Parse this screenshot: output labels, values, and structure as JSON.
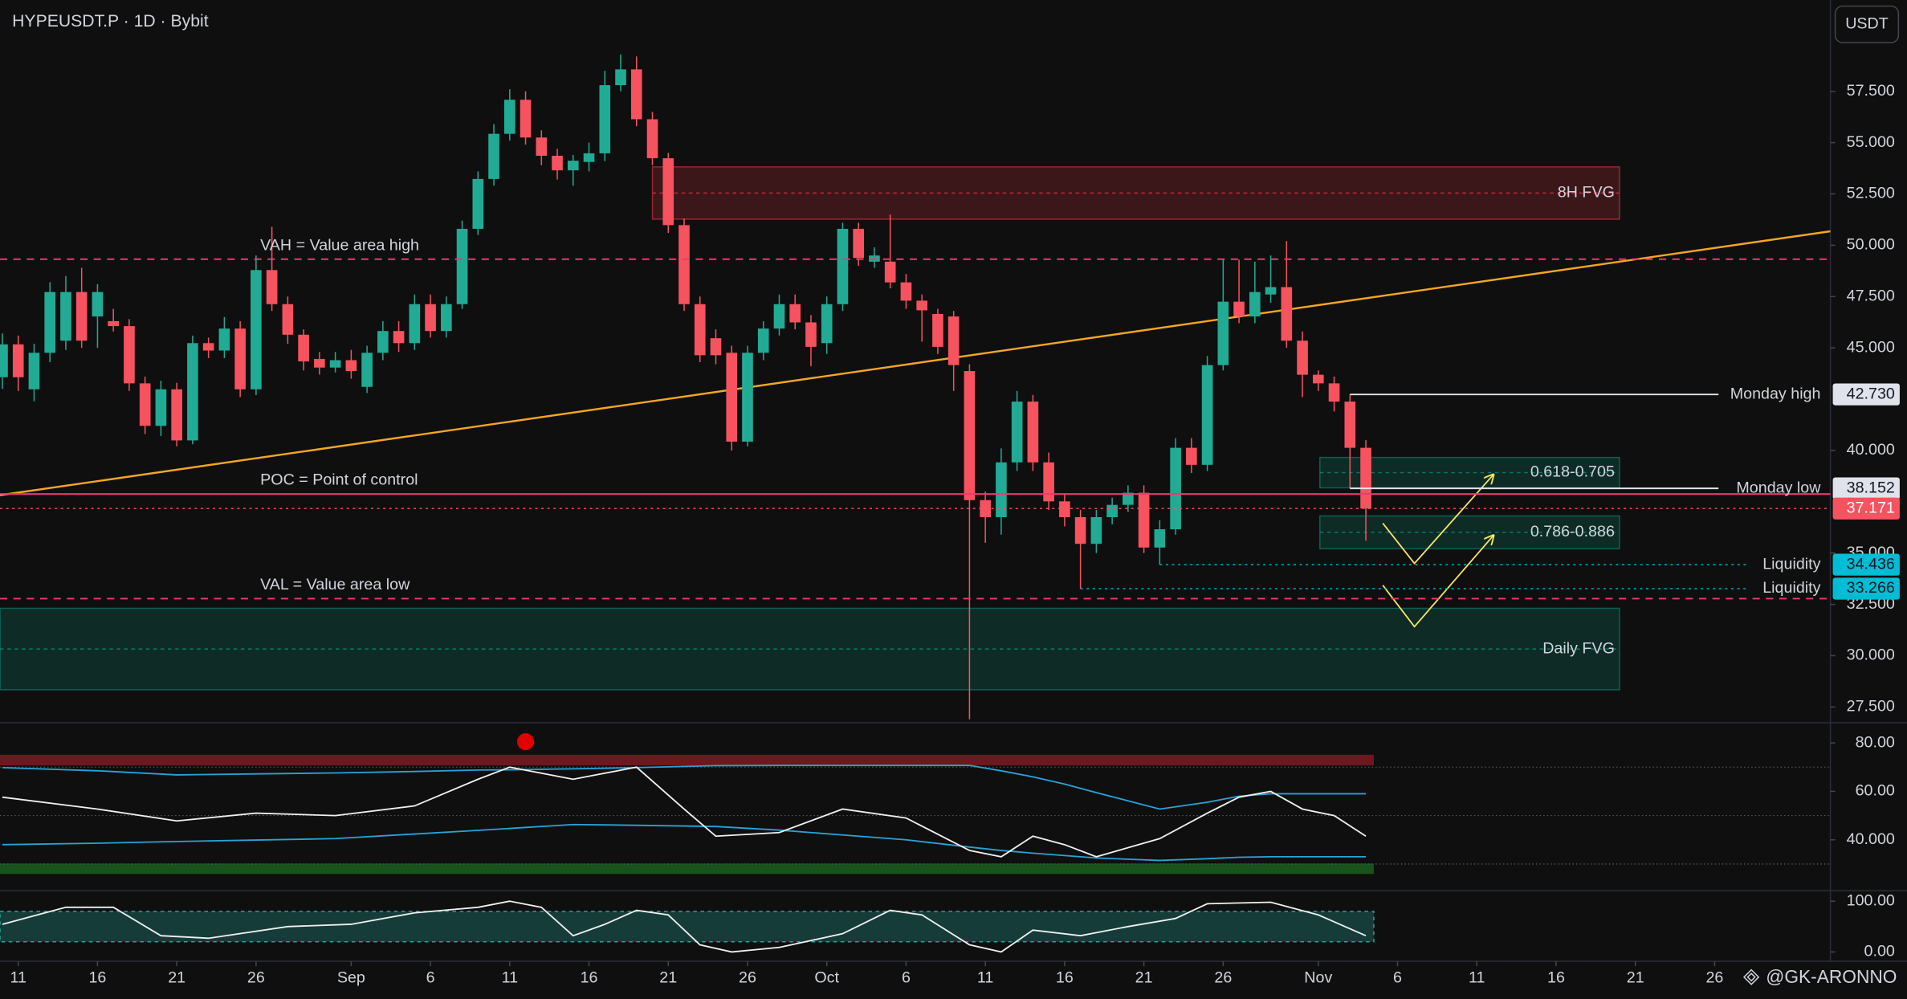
{
  "chart_data": {
    "type": "candlestick",
    "title": "HYPEUSDT.P · 1D · Bybit",
    "currency": "USDT",
    "watermark": "@GK-ARONNO",
    "up_color": "#22ab94",
    "down_color": "#f7525f",
    "xlim": [
      -1.15,
      114.3
    ],
    "ylim": [
      26.79,
      61.95
    ],
    "xticks": [
      {
        "value": 0,
        "label": "11"
      },
      {
        "value": 5,
        "label": "16"
      },
      {
        "value": 10,
        "label": "21"
      },
      {
        "value": 15,
        "label": "26"
      },
      {
        "value": 21,
        "label": "Sep"
      },
      {
        "value": 26,
        "label": "6"
      },
      {
        "value": 31,
        "label": "11"
      },
      {
        "value": 36,
        "label": "16"
      },
      {
        "value": 41,
        "label": "21"
      },
      {
        "value": 46,
        "label": "26"
      },
      {
        "value": 51,
        "label": "Oct"
      },
      {
        "value": 56,
        "label": "6"
      },
      {
        "value": 61,
        "label": "11"
      },
      {
        "value": 66,
        "label": "16"
      },
      {
        "value": 71,
        "label": "21"
      },
      {
        "value": 76,
        "label": "26"
      },
      {
        "value": 82,
        "label": "Nov"
      },
      {
        "value": 87,
        "label": "6"
      },
      {
        "value": 92,
        "label": "11"
      },
      {
        "value": 97,
        "label": "16"
      },
      {
        "value": 102,
        "label": "21"
      },
      {
        "value": 107,
        "label": "26"
      }
    ],
    "yticks": [
      {
        "value": 27.5,
        "label": "27.500"
      },
      {
        "value": 30,
        "label": "30.000"
      },
      {
        "value": 32.5,
        "label": "32.500"
      },
      {
        "value": 35,
        "label": "35.000"
      },
      {
        "value": 40,
        "label": "40.000"
      },
      {
        "value": 45,
        "label": "45.000"
      },
      {
        "value": 47.5,
        "label": "47.500"
      },
      {
        "value": 50,
        "label": "50.000"
      },
      {
        "value": 52.5,
        "label": "52.500"
      },
      {
        "value": 55,
        "label": "55.000"
      },
      {
        "value": 57.5,
        "label": "57.500"
      }
    ],
    "x": [
      -1,
      0,
      1,
      2,
      3,
      4,
      5,
      6,
      7,
      8,
      9,
      10,
      11,
      12,
      13,
      14,
      15,
      16,
      17,
      18,
      19,
      20,
      21,
      22,
      23,
      24,
      25,
      26,
      27,
      28,
      29,
      30,
      31,
      32,
      33,
      34,
      35,
      36,
      37,
      38,
      39,
      40,
      41,
      42,
      43,
      44,
      45,
      46,
      47,
      48,
      49,
      50,
      51,
      52,
      53,
      54,
      55,
      56,
      57,
      58,
      59,
      60,
      61,
      62,
      63,
      64,
      65,
      66,
      67,
      68,
      69,
      70,
      71,
      72,
      73,
      74,
      75,
      76,
      77,
      78,
      79,
      80,
      81,
      82,
      83,
      84,
      85
    ],
    "open": [
      43.57,
      45.17,
      42.98,
      44.76,
      45.35,
      47.72,
      46.53,
      46.3,
      46.06,
      43.27,
      41.2,
      42.98,
      40.49,
      45.23,
      44.87,
      45.94,
      42.98,
      48.79,
      47.13,
      45.64,
      44.46,
      44.04,
      44.4,
      43.1,
      44.76,
      45.82,
      45.23,
      47.13,
      45.82,
      47.13,
      50.8,
      53.23,
      55.43,
      57.09,
      55.25,
      54.36,
      53.65,
      54.06,
      54.48,
      57.8,
      58.57,
      56.14,
      54.24,
      50.98,
      47.13,
      45.47,
      44.76,
      40.43,
      44.76,
      45.94,
      47.13,
      46.24,
      45.23,
      47.13,
      50.8,
      49.2,
      49.2,
      48.19,
      47.3,
      46.65,
      46.53,
      43.87,
      37.58,
      36.75,
      39.42,
      42.38,
      39.42,
      37.52,
      36.75,
      35.45,
      36.75,
      37.35,
      37.94,
      35.27,
      36.16,
      40.13,
      39.3,
      44.16,
      47.25,
      46.53,
      47.6,
      47.96,
      45.35,
      43.69,
      43.27,
      42.38,
      40.13
    ],
    "high": [
      45.7,
      45.6,
      45.2,
      48.2,
      48.5,
      48.9,
      48.1,
      46.9,
      46.4,
      43.6,
      43.4,
      43.3,
      45.6,
      45.5,
      46.5,
      46.3,
      49.5,
      50.9,
      47.5,
      45.9,
      44.8,
      44.8,
      44.9,
      45.1,
      46.3,
      46.3,
      47.6,
      47.6,
      47.5,
      51.2,
      53.6,
      55.9,
      57.6,
      57.5,
      55.6,
      54.7,
      54.4,
      55.0,
      58.5,
      59.3,
      59.2,
      56.5,
      54.5,
      51.3,
      47.5,
      45.9,
      45.1,
      45.1,
      46.3,
      47.6,
      47.6,
      46.6,
      47.5,
      51.1,
      51.1,
      49.9,
      51.5,
      48.6,
      47.6,
      46.9,
      46.8,
      44.2,
      38.0,
      40.1,
      42.9,
      42.7,
      39.9,
      37.9,
      37.1,
      37.1,
      37.7,
      38.3,
      38.3,
      36.6,
      40.6,
      40.6,
      44.6,
      49.3,
      49.3,
      49.2,
      49.5,
      50.2,
      45.8,
      43.9,
      43.6,
      42.73,
      40.5
    ],
    "low": [
      43.0,
      42.9,
      42.4,
      44.3,
      44.9,
      45.0,
      45.0,
      45.8,
      42.9,
      40.8,
      40.7,
      40.2,
      40.3,
      44.5,
      44.5,
      42.6,
      42.7,
      46.8,
      45.2,
      43.9,
      43.7,
      43.8,
      43.5,
      42.8,
      44.4,
      44.8,
      44.9,
      45.5,
      45.5,
      46.9,
      50.5,
      52.9,
      55.1,
      54.9,
      53.9,
      53.2,
      52.9,
      53.6,
      54.1,
      57.5,
      55.8,
      53.9,
      50.6,
      46.8,
      44.3,
      44.2,
      40.0,
      40.2,
      44.4,
      45.6,
      45.9,
      44.1,
      44.7,
      46.8,
      49.0,
      48.9,
      47.9,
      46.9,
      45.3,
      44.7,
      42.9,
      26.9,
      35.5,
      35.9,
      39.0,
      39.0,
      37.1,
      36.3,
      33.266,
      35.0,
      36.4,
      37.0,
      35.0,
      34.436,
      35.9,
      38.9,
      39.0,
      43.9,
      46.2,
      46.2,
      47.2,
      45.0,
      42.6,
      42.9,
      41.9,
      38.152,
      35.6
    ],
    "close": [
      45.17,
      43.57,
      44.76,
      47.72,
      47.72,
      45.35,
      47.72,
      46.06,
      43.27,
      41.2,
      42.98,
      40.49,
      45.23,
      44.87,
      45.94,
      42.98,
      48.79,
      47.13,
      45.64,
      44.34,
      44.04,
      44.4,
      43.87,
      44.76,
      45.82,
      45.23,
      47.13,
      45.82,
      47.13,
      50.8,
      53.23,
      55.43,
      57.09,
      55.25,
      54.36,
      53.65,
      54.12,
      54.48,
      57.8,
      58.57,
      56.14,
      54.24,
      50.98,
      47.13,
      44.64,
      44.64,
      40.43,
      44.76,
      45.94,
      47.13,
      46.24,
      45.05,
      47.13,
      50.8,
      49.38,
      49.5,
      48.19,
      47.3,
      46.83,
      45.05,
      44.16,
      37.58,
      36.75,
      39.42,
      42.38,
      39.42,
      37.52,
      36.75,
      35.45,
      36.75,
      37.35,
      37.94,
      35.27,
      36.16,
      40.13,
      39.3,
      44.16,
      47.25,
      46.53,
      47.72,
      47.96,
      45.35,
      43.69,
      43.27,
      42.38,
      40.13,
      37.171
    ],
    "trendline": {
      "color": "#f5a623",
      "x": [
        -1.15,
        114.3
      ],
      "values": [
        37.82,
        50.68
      ]
    },
    "zones": [
      {
        "text": "8H FVG",
        "top": 53.82,
        "bottom": 51.27,
        "x": [
          40,
          101
        ],
        "color": "#f23645"
      },
      {
        "text": "Daily FVG",
        "top": 32.31,
        "bottom": 28.34,
        "x": [
          -1.15,
          101
        ],
        "color": "#089981"
      },
      {
        "text": "0.618-0.705",
        "top": 39.66,
        "bottom": 38.18,
        "x": [
          82.1,
          101
        ],
        "color": "#089981"
      },
      {
        "text": "0.786-0.886",
        "top": 36.81,
        "bottom": 35.21,
        "x": [
          82.1,
          101
        ],
        "color": "#089981"
      }
    ],
    "levels": [
      {
        "text": "VAH = Value area high",
        "value": 49.32,
        "color": "#f23670",
        "style": "dashed"
      },
      {
        "text": "POC = Point of control",
        "value": 37.88,
        "color": "#f23670",
        "style": "solid"
      },
      {
        "text": "VAL = Value area low",
        "value": 32.78,
        "color": "#f23670",
        "style": "dashed"
      },
      {
        "text": "Monday high",
        "value": 42.73,
        "value_label": "42.730",
        "x0": 84,
        "color": "#e0e3eb",
        "label_text_color": "#131722",
        "style": "solid"
      },
      {
        "text": "Monday low",
        "value": 38.152,
        "value_label": "38.152",
        "x0": 84,
        "color": "#e0e3eb",
        "label_text_color": "#131722",
        "style": "solid"
      },
      {
        "value": 37.171,
        "value_label": "37.171",
        "color": "#f7525f",
        "label_text_color": "#ffffff",
        "style": "dotted"
      },
      {
        "text": "Liquidity",
        "value": 34.436,
        "value_label": "34.436",
        "x0": 72,
        "color": "#00bcd4",
        "label_text_color": "#131722",
        "style": "dotted"
      },
      {
        "text": "Liquidity",
        "value": 33.266,
        "value_label": "33.266",
        "x0": 67,
        "color": "#00bcd4",
        "label_text_color": "#131722",
        "style": "dotted"
      }
    ],
    "indicators": [
      {
        "ylim": [
          20,
          86.8
        ],
        "yticks": [
          {
            "value": 80,
            "label": "80.00"
          },
          {
            "value": 60,
            "label": "60.00"
          },
          {
            "value": 40,
            "label": "40.000"
          }
        ],
        "levels": [
          70,
          50,
          30
        ],
        "zones": [
          {
            "top": 75.1,
            "bottom": 70.7,
            "x": [
              -1.15,
              85.5
            ],
            "color": "#8e1c24"
          },
          {
            "top": 30.2,
            "bottom": 25.9,
            "x": [
              -1.15,
              85.5
            ],
            "color": "#1b6b20"
          }
        ],
        "x": [
          -1,
          5,
          10,
          15,
          20,
          25,
          29,
          31,
          35,
          39,
          42,
          44,
          48,
          52,
          56,
          60,
          62,
          64,
          66,
          68,
          72,
          75,
          77,
          79,
          81,
          83,
          85
        ],
        "series": [
          {
            "color": "#2aa3d8",
            "values": [
              69.8,
              68.5,
              66.8,
              67.2,
              67.6,
              68.2,
              68.8,
              68.9,
              69.3,
              69.8,
              70.3,
              70.6,
              70.7,
              70.7,
              70.7,
              70.7,
              68.5,
              66.0,
              63.0,
              59.5,
              52.7,
              55.5,
              58.0,
              59.0,
              59.0,
              59.0,
              59.0
            ]
          },
          {
            "color": "#2aa3d8",
            "values": [
              38,
              38.6,
              39.3,
              39.9,
              40.5,
              42.4,
              43.9,
              44.7,
              46.3,
              46.0,
              45.7,
              45.5,
              44.0,
              42.0,
              40.0,
              37.0,
              35.6,
              34.5,
              33.5,
              32.5,
              31.5,
              32.2,
              32.8,
              33.0,
              33.0,
              33.0,
              33.0
            ]
          },
          {
            "color": "#f0f0f0",
            "values": [
              57.6,
              52.7,
              47.8,
              51,
              50,
              54,
              65,
              70,
              65,
              70,
              52.7,
              41.5,
              43,
              52.7,
              49,
              35.6,
              33,
              41.5,
              38,
              33,
              40.5,
              51,
              57.6,
              60,
              52.7,
              50,
              41.5
            ]
          }
        ],
        "signals": [
          {
            "x": 32,
            "value": 80.5,
            "color": "#e00000"
          }
        ]
      },
      {
        "ylim": [
          -13.6,
          115.9
        ],
        "yticks": [
          {
            "value": 100,
            "label": "100.00"
          },
          {
            "value": 0,
            "label": "0.00"
          }
        ],
        "levels": [],
        "zones": [
          {
            "top": 80,
            "bottom": 20,
            "x": [
              -1.15,
              85.5
            ],
            "color": "#26a69a"
          }
        ],
        "x": [
          -1,
          3,
          6,
          9,
          12,
          17,
          21,
          25,
          29,
          31,
          33,
          35,
          37,
          39,
          41,
          43,
          45,
          48,
          52,
          55,
          57,
          60,
          62,
          64,
          67,
          70,
          73,
          75,
          79,
          82,
          85
        ],
        "series": [
          {
            "color": "#f0f0f0",
            "values": [
              54.5,
              88,
              88,
              32,
              27,
              50,
              54.5,
              77,
              88,
              100,
              88,
              32,
              54.5,
              82,
              73,
              14,
              0,
              9,
              36,
              82,
              73,
              14,
              0,
              43,
              32,
              50,
              66,
              95,
              98,
              73,
              32
            ]
          }
        ],
        "signals": []
      }
    ]
  }
}
